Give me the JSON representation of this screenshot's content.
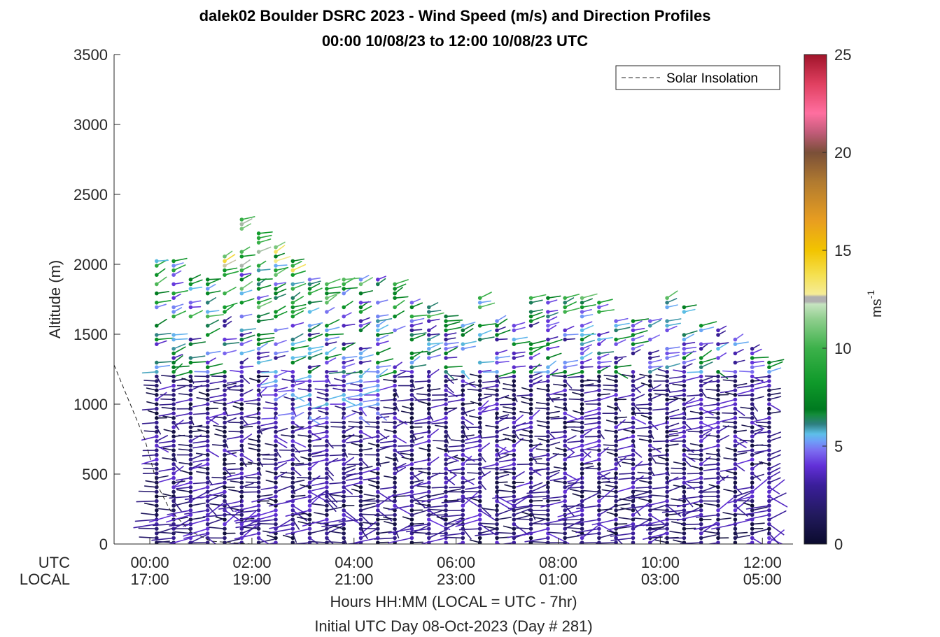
{
  "chart_data": {
    "type": "wind_barb_profile",
    "title_line1": "dalek02 Boulder DSRC 2023 - Wind Speed (m/s) and Direction Profiles",
    "title_line2": "00:00 10/08/23 to 12:00 10/08/23  UTC",
    "ylabel": "Altitude (m)",
    "xlabel": "Hours HH:MM  (LOCAL = UTC - 7hr)",
    "xlabel2": "Initial UTC Day 08-Oct-2023 (Day # 281)",
    "x_row_labels": [
      "UTC",
      "LOCAL"
    ],
    "ylim": [
      0,
      3500
    ],
    "xlim_hours": [
      -0.7,
      12.6
    ],
    "y_ticks": [
      0,
      500,
      1000,
      1500,
      2000,
      2500,
      3000,
      3500
    ],
    "y_tick_labels": [
      "0",
      "500",
      "1000",
      "1500",
      "2000",
      "2500",
      "3000",
      "3500"
    ],
    "x_ticks_hours": [
      0,
      2,
      4,
      6,
      8,
      10,
      12
    ],
    "x_tick_utc": [
      "00:00",
      "02:00",
      "04:00",
      "06:00",
      "08:00",
      "10:00",
      "12:00"
    ],
    "x_tick_local": [
      "17:00",
      "19:00",
      "21:00",
      "23:00",
      "01:00",
      "03:00",
      "05:00"
    ],
    "colorbar": {
      "label": "ms",
      "label_exponent": "-1",
      "range": [
        0,
        25
      ],
      "ticks": [
        0,
        5,
        10,
        15,
        20,
        25
      ],
      "tick_labels": [
        "0",
        "5",
        "10",
        "15",
        "20",
        "25"
      ]
    },
    "legend": {
      "entries": [
        "Solar Insolation"
      ],
      "placement": "top-right",
      "line_style": "dashed"
    },
    "solar_insolation_line": {
      "x_hours": [
        -0.7,
        -0.1,
        0.0,
        0.15,
        0.4,
        0.8,
        1.2,
        2.0,
        12.6
      ],
      "y_m": [
        1280,
        750,
        620,
        420,
        240,
        90,
        20,
        0,
        0
      ]
    },
    "profile_times_hours": [
      0.133,
      0.467,
      0.8,
      1.133,
      1.467,
      1.8,
      2.133,
      2.467,
      2.8,
      3.133,
      3.467,
      3.8,
      4.133,
      4.467,
      4.8,
      5.133,
      5.467,
      5.8,
      6.133,
      6.467,
      6.8,
      7.133,
      7.467,
      7.8,
      8.133,
      8.467,
      8.8,
      9.133,
      9.467,
      9.8,
      10.133,
      10.467,
      10.8,
      11.133,
      11.467,
      11.8,
      12.133
    ],
    "profile_top_altitudes_m": [
      2050,
      2050,
      1900,
      1900,
      2060,
      2340,
      2230,
      2150,
      2050,
      1900,
      1880,
      1900,
      1900,
      1900,
      1860,
      1750,
      1700,
      1650,
      1580,
      1780,
      1620,
      1580,
      1780,
      1770,
      1780,
      1780,
      1740,
      1620,
      1620,
      1600,
      1790,
      1700,
      1580,
      1540,
      1480,
      1400,
      1320
    ],
    "range_gate_spacing_m": 33,
    "notes": "Each profile is a column of wind barbs; the dot marks the altitude, the line points toward wind direction; color encodes speed on the 0-25 m/s colorbar. Lower levels (< 1200 m) mostly 0-4 m/s (dark navy to purple); upper levels 4-12 m/s (blue to green); a few 13-16 m/s (yellow) near 2000-2300 m around 02:00-03:00 UTC."
  }
}
